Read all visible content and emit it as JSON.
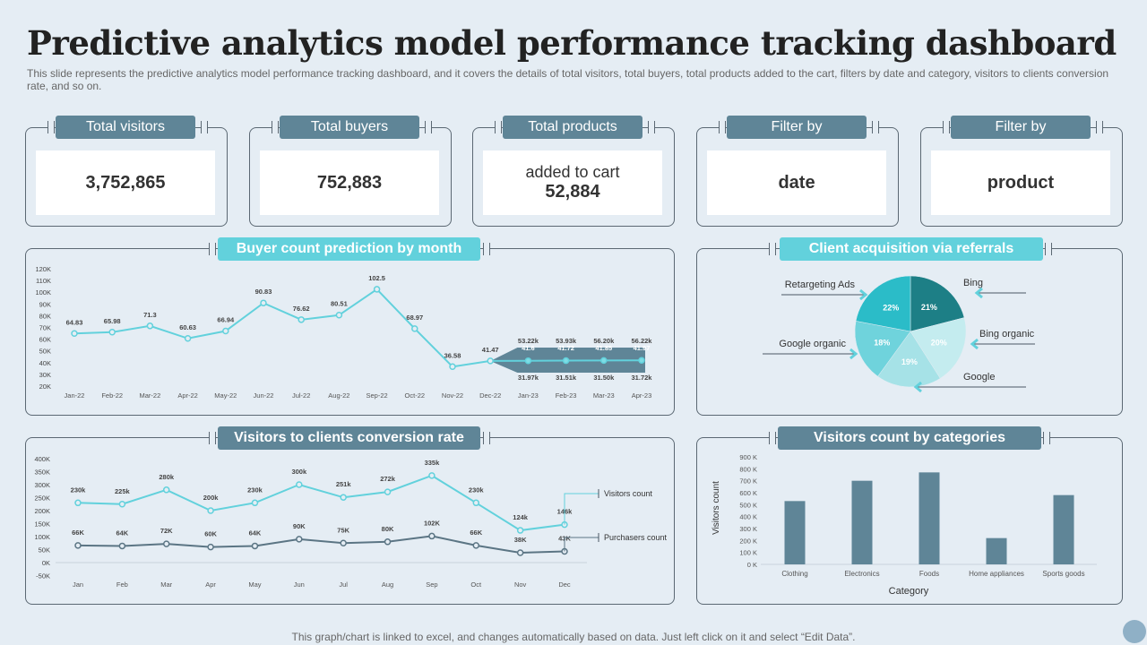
{
  "title": "Predictive analytics model performance tracking dashboard",
  "subtitle": "This slide represents the predictive analytics model performance tracking dashboard, and it covers the details of total visitors, total buyers, total products added to the cart, filters by date and category, visitors to clients conversion rate, and so on.",
  "kpis": [
    {
      "label": "Total visitors",
      "line1": "",
      "value": "3,752,865"
    },
    {
      "label": "Total buyers",
      "line1": "",
      "value": "752,883"
    },
    {
      "label": "Total products",
      "line1": "added to cart",
      "value": "52,884"
    },
    {
      "label": "Filter by",
      "line1": "",
      "value": "date"
    },
    {
      "label": "Filter by",
      "line1": "",
      "value": "product"
    }
  ],
  "panels": {
    "buyer": "Buyer count prediction by month",
    "referral": "Client acquisition via referrals",
    "conversion": "Visitors to clients conversion rate",
    "categories": "Visitors count by categories"
  },
  "footer": "This graph/chart is linked to excel,  and changes automatically based on data. Just left click on it and select “Edit Data”.",
  "colors": {
    "cyan": "#62d1dc",
    "slate": "#5f8597",
    "dark": "#5b6873"
  },
  "chart_data": [
    {
      "type": "line",
      "title": "Buyer count prediction by month",
      "categories": [
        "Jan-22",
        "Feb-22",
        "Mar-22",
        "Apr-22",
        "May-22",
        "Jun-22",
        "Jul-22",
        "Aug-22",
        "Sep-22",
        "Oct-22",
        "Nov-22",
        "Dec-22",
        "Jan-23",
        "Feb-23",
        "Mar-23",
        "Apr-23"
      ],
      "values": [
        64.83,
        65.98,
        71.3,
        60.63,
        66.94,
        90.83,
        76.62,
        80.51,
        102.5,
        68.97,
        36.58,
        41.47,
        41.6,
        41.72,
        41.85,
        41.97
      ],
      "labels": [
        "64.83",
        "65.98",
        "71.3",
        "60.63",
        "66.94",
        "90.83",
        "76.62",
        "80.51",
        "102.5",
        "68.97",
        "36.58",
        "41.47",
        "41.6",
        "41.72",
        "41.85",
        "41.97"
      ],
      "forecast_upper": [
        "53.22k",
        "53.93k",
        "56.20k",
        "56.22k"
      ],
      "forecast_lower": [
        "31.97k",
        "31.51k",
        "31.50k",
        "31.72k"
      ],
      "yticks": [
        "20K",
        "30K",
        "40K",
        "50K",
        "60K",
        "70K",
        "80K",
        "90K",
        "100K",
        "110K",
        "120K"
      ],
      "ylim": [
        20,
        120
      ]
    },
    {
      "type": "pie",
      "title": "Client acquisition via referrals",
      "slices": [
        {
          "name": "Bing",
          "value": 21,
          "label": "21%",
          "color": "#1d7f86"
        },
        {
          "name": "Bing organic",
          "value": 20,
          "label": "20%",
          "color": "#c4ecef"
        },
        {
          "name": "Google",
          "value": 19,
          "label": "19%",
          "color": "#a6e2e7"
        },
        {
          "name": "Google organic",
          "value": 18,
          "label": "18%",
          "color": "#6fd3dc"
        },
        {
          "name": "Retargeting Ads",
          "value": 22,
          "label": "22%",
          "color": "#2bbcc8"
        }
      ]
    },
    {
      "type": "line",
      "title": "Visitors to clients conversion rate",
      "categories": [
        "Jan",
        "Feb",
        "Mar",
        "Apr",
        "May",
        "Jun",
        "Jul",
        "Aug",
        "Sep",
        "Oct",
        "Nov",
        "Dec"
      ],
      "series": [
        {
          "name": "Visitors count",
          "values": [
            230,
            225,
            280,
            200,
            230,
            300,
            251,
            272,
            335,
            230,
            124,
            146
          ],
          "labels": [
            "230k",
            "225k",
            "280k",
            "200k",
            "230k",
            "300k",
            "251k",
            "272k",
            "335k",
            "230k",
            "124k",
            "146k"
          ],
          "color": "#62d1dc"
        },
        {
          "name": "Purchasers count",
          "values": [
            66,
            64,
            72,
            60,
            64,
            90,
            75,
            80,
            102,
            66,
            38,
            43
          ],
          "labels": [
            "66K",
            "64K",
            "72K",
            "60K",
            "64K",
            "90K",
            "75K",
            "80K",
            "102K",
            "66K",
            "38K",
            "43K"
          ],
          "color": "#5b7584"
        }
      ],
      "yticks": [
        "-50K",
        "0K",
        "50K",
        "100K",
        "150K",
        "200K",
        "250K",
        "300K",
        "350K",
        "400K"
      ],
      "ylim": [
        -50,
        400
      ]
    },
    {
      "type": "bar",
      "title": "Visitors count by categories",
      "xlabel": "Category",
      "ylabel": "Visitors count",
      "categories": [
        "Clothing",
        "Electronics",
        "Foods",
        "Home appliances",
        "Sports goods"
      ],
      "values": [
        530,
        700,
        770,
        220,
        580
      ],
      "yticks": [
        "0 K",
        "100 K",
        "200 K",
        "300 K",
        "400 K",
        "500 K",
        "600 K",
        "700 K",
        "800 K",
        "900 K"
      ],
      "ylim": [
        0,
        900
      ]
    }
  ]
}
